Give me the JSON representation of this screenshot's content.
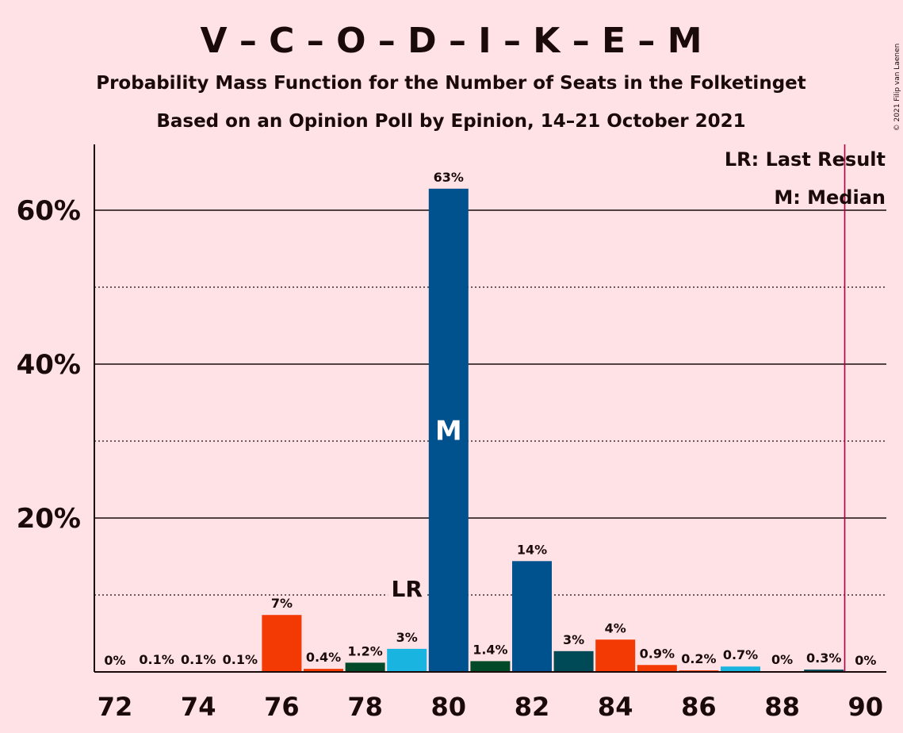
{
  "title": "V – C – O – D – I – K – E – M",
  "subtitle1": "Probability Mass Function for the Number of Seats in the Folketinget",
  "subtitle2": "Based on an Opinion Poll by Epinion, 14–21 October 2021",
  "credit": "© 2021 Filip van Laenen",
  "legend": {
    "last_result": "LR: Last Result",
    "median": "M: Median"
  },
  "chart_data": {
    "type": "bar",
    "x": [
      72,
      73,
      74,
      75,
      76,
      77,
      78,
      79,
      80,
      81,
      82,
      83,
      84,
      85,
      86,
      87,
      88,
      89,
      90
    ],
    "values": [
      0,
      0.1,
      0.1,
      0.1,
      7.4,
      0.4,
      1.2,
      3,
      62.8,
      1.4,
      14.4,
      2.7,
      4.2,
      0.9,
      0.2,
      0.7,
      0.04,
      0.3,
      0
    ],
    "labels": [
      "0%",
      "0.1%",
      "0.1%",
      "0.1%",
      "7%",
      "0.4%",
      "1.2%",
      "3%",
      "63%",
      "1.4%",
      "14%",
      "3%",
      "4%",
      "0.9%",
      "0.2%",
      "0.7%",
      "0%",
      "0.3%",
      "0%"
    ],
    "colors": [
      "#f43a04",
      "#f43a04",
      "#f43a04",
      "#f43a04",
      "#f43a04",
      "#f43a04",
      "#004a2a",
      "#1ab4e0",
      "#00528f",
      "#004a2a",
      "#00528f",
      "#004a57",
      "#f43a04",
      "#f43a04",
      "#f43a04",
      "#1ab4e0",
      "#004a2a",
      "#004a57",
      "#004a2a"
    ],
    "xticks": [
      "72",
      "74",
      "76",
      "78",
      "80",
      "82",
      "84",
      "86",
      "88",
      "90"
    ],
    "yticks": [
      "20%",
      "40%",
      "60%"
    ],
    "ylim": [
      0,
      68
    ],
    "xlim": [
      71.5,
      90.5
    ],
    "last_result_seat": 79,
    "last_result_label": "LR",
    "median_seat": 80,
    "median_label": "M",
    "majority_line": 89.5,
    "grid": {
      "solid": [
        20,
        40,
        60
      ],
      "dotted": [
        10,
        30,
        50
      ]
    }
  }
}
